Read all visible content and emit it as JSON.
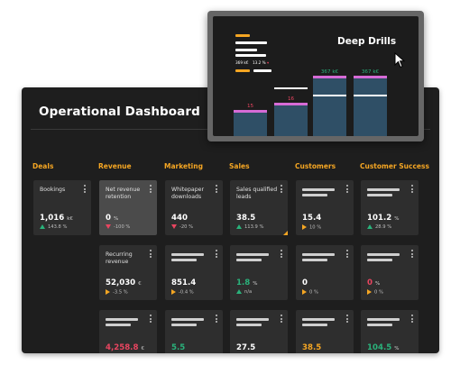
{
  "dashboard": {
    "title": "Operational Dashboard",
    "columns": [
      "Deals",
      "Revenue",
      "Marketing",
      "Sales",
      "Customers",
      "Customer Success"
    ]
  },
  "cards": {
    "bookings": {
      "name": "Bookings",
      "value": "1,016",
      "unit": "k€",
      "change": "143.8 %"
    },
    "net_revenue_retention": {
      "name": "Net revenue retention",
      "value": "0",
      "unit": "%",
      "change": "-100 %"
    },
    "whitepaper_downloads": {
      "name": "Whitepaper downloads",
      "value": "440",
      "change": "-20 %"
    },
    "sales_qualified_leads": {
      "name": "Sales qualified leads",
      "value": "38.5",
      "change": "113.9 %"
    },
    "customers_1": {
      "value": "15.4",
      "change": "10 %"
    },
    "cs_1": {
      "value": "101.2",
      "unit": "%",
      "change": "28.9 %"
    },
    "recurring_revenue": {
      "name": "Recurring revenue",
      "value": "52,030",
      "unit": "€",
      "change": "-3.5 %"
    },
    "marketing_2": {
      "value": "851.4",
      "change": "-0.4 %"
    },
    "sales_2": {
      "value": "1.8",
      "unit": "%",
      "change": "n/a"
    },
    "customers_2": {
      "value": "0",
      "change": "0 %"
    },
    "cs_2": {
      "value": "0",
      "unit": "%",
      "change": "0 %"
    },
    "revenue_3": {
      "value": "4,258.8",
      "unit": "€"
    },
    "marketing_3": {
      "value": "5.5"
    },
    "sales_3": {
      "value": "27.5"
    },
    "customers_3": {
      "value": "38.5"
    },
    "cs_3": {
      "value": "104.5",
      "unit": "%"
    }
  },
  "popup": {
    "title": "Deep Drills",
    "legend_value": "369 k€",
    "legend_change": "13.2 %",
    "bar_labels": [
      "15",
      "16",
      "367 k€",
      "367 k€"
    ]
  },
  "colors": {
    "accent": "#f5a623",
    "positive": "#2ab27b",
    "negative": "#e94560",
    "highlight": "#d66bd6",
    "bar": "#2f4f66"
  }
}
